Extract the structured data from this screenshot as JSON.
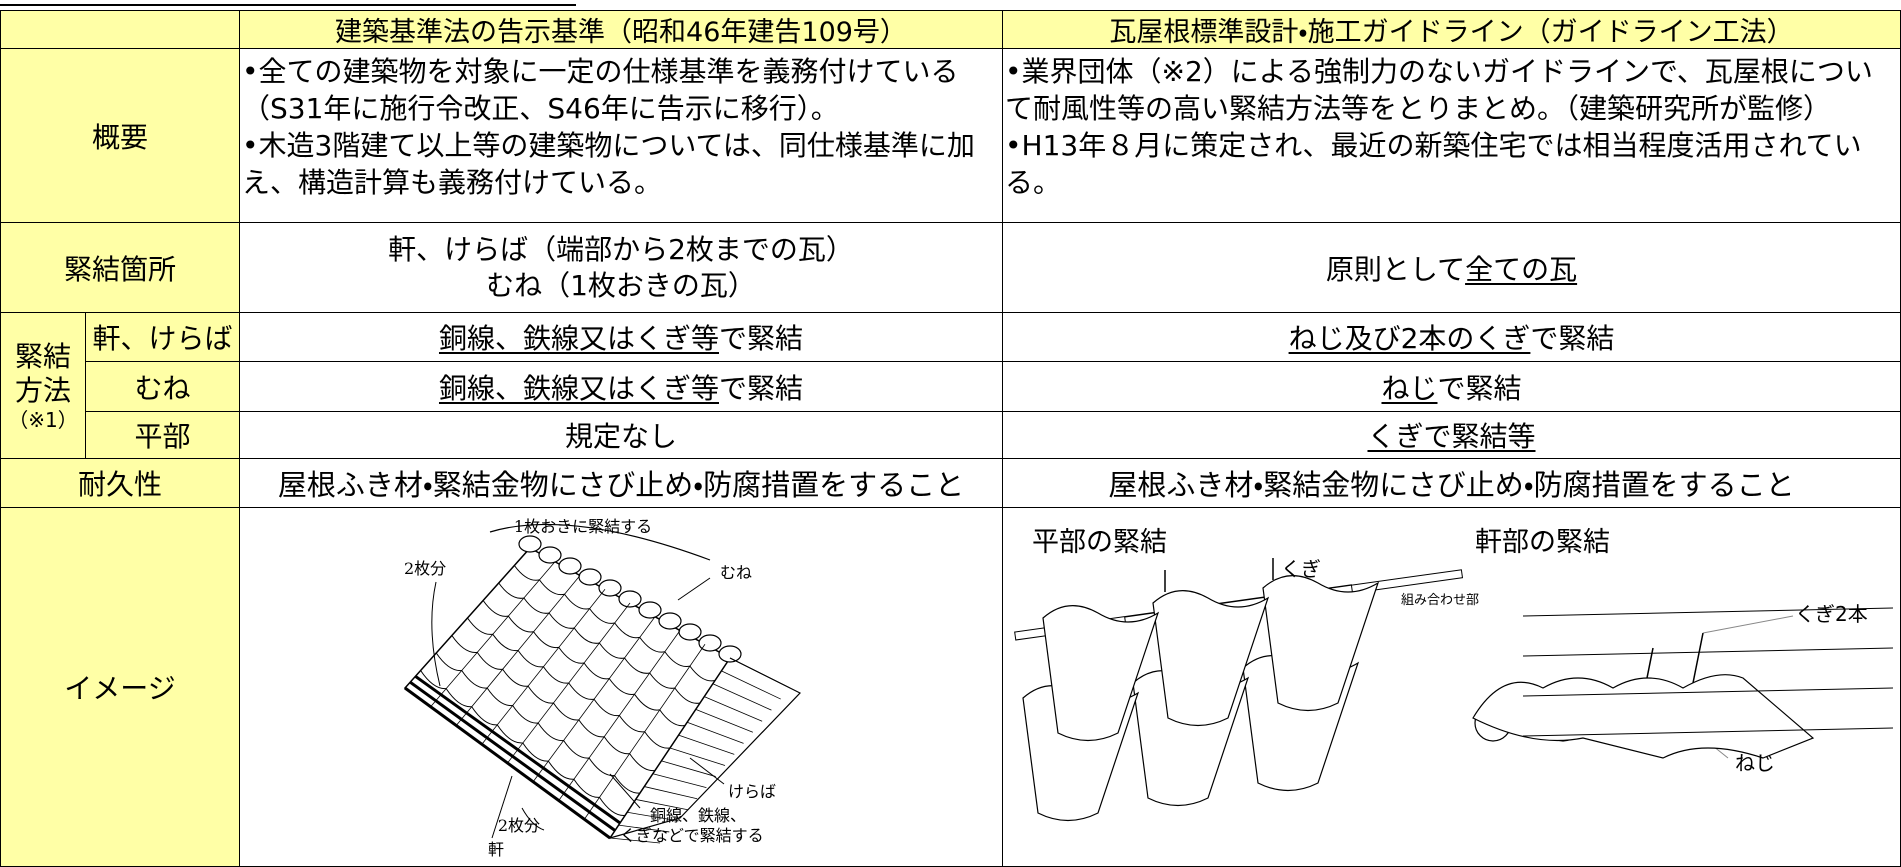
{
  "table": {
    "header": [
      "建築基準法の告示基準（昭和46年建告109号）",
      "瓦屋根標準設計・施工ガイドライン（ガイドライン工法）"
    ],
    "overview": {
      "label": "概要",
      "standard": [
        "•全ての建築物を対象に一定の仕様基準を義務付けている（S31年に施行令改正、S46年に告示に移行）。",
        "•木造3階建て以上等の建築物については、同仕様基準に加え、構造計算も義務付けている。"
      ],
      "guideline": [
        "•業界団体（※2）による強制力のないガイドラインで、瓦屋根について耐風性等の高い緊結方法等をとりまとめ。（建築研究所が監修）",
        "•H13年８月に策定され、最近の新築住宅では相当程度活用されている。"
      ]
    },
    "location": {
      "label": "緊結箇所",
      "standard": [
        "軒、けらば（端部から2枚までの瓦）",
        "むね（1枚おきの瓦）"
      ],
      "guideline": [
        "原則として",
        "全ての瓦"
      ]
    },
    "method": {
      "label": "緊結方法",
      "note": "（※1）",
      "rows": [
        {
          "label": "軒、けらば",
          "standard": [
            "銅線、鉄線又はくぎ等",
            "で緊結"
          ],
          "guideline": [
            "ねじ及び2本のくぎ",
            "で緊結"
          ]
        },
        {
          "label": "むね",
          "standard": [
            "銅線、鉄線又はくぎ等",
            "で緊結"
          ],
          "guideline": [
            "ねじ",
            "で緊結"
          ]
        },
        {
          "label": "平部",
          "standard": [
            "規定なし"
          ],
          "guideline": [
            "くぎで緊結等"
          ]
        }
      ]
    },
    "durability": {
      "label": "耐久性",
      "standard": "屋根ふき材・緊結金物にさび止め・防腐措置をすること",
      "guideline": "屋根ふき材・緊結金物にさび止め・防腐措置をすること"
    },
    "image": {
      "label": "イメージ",
      "standard": {
        "every_other": "1枚おきに緊結する",
        "ridge": "むね",
        "two_tiles_top": "2枚分",
        "verge": "けらば",
        "two_tiles_bottom": "2枚分",
        "fastening": [
          "銅線、鉄線、",
          "くぎなどで緊結する"
        ],
        "eave": "軒"
      },
      "guideline": {
        "flat_title": "平部の緊結",
        "eave_title": "軒部の緊結",
        "nail": "くぎ",
        "joint": "組み合わせ部",
        "two_nails": "くぎ2本",
        "screw": "ねじ"
      }
    }
  }
}
